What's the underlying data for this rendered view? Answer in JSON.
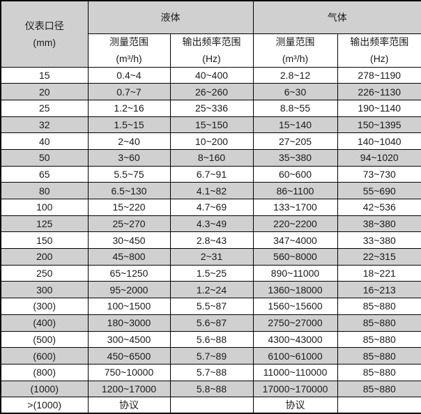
{
  "table": {
    "header": {
      "diameter_line1": "仪表口径",
      "diameter_line2": "(mm)",
      "group_liquid": "液体",
      "group_gas": "气体",
      "measure_label": "测量范围",
      "measure_unit": "(m³/h)",
      "freq_label": "输出频率范围",
      "freq_unit": "(Hz)"
    },
    "rows": [
      {
        "diameter": "15",
        "liquid_measure": "0.4~4",
        "liquid_freq": "40~400",
        "gas_measure": "2.8~12",
        "gas_freq": "278~1190",
        "shaded": false
      },
      {
        "diameter": "20",
        "liquid_measure": "0.7~7",
        "liquid_freq": "26~260",
        "gas_measure": "6~30",
        "gas_freq": "226~1130",
        "shaded": true
      },
      {
        "diameter": "25",
        "liquid_measure": "1.2~16",
        "liquid_freq": "25~336",
        "gas_measure": "8.8~55",
        "gas_freq": "190~1140",
        "shaded": false
      },
      {
        "diameter": "32",
        "liquid_measure": "1.5~15",
        "liquid_freq": "15~150",
        "gas_measure": "15~140",
        "gas_freq": "150~1395",
        "shaded": true
      },
      {
        "diameter": "40",
        "liquid_measure": "2~40",
        "liquid_freq": "10~200",
        "gas_measure": "27~205",
        "gas_freq": "140~1040",
        "shaded": false
      },
      {
        "diameter": "50",
        "liquid_measure": "3~60",
        "liquid_freq": "8~160",
        "gas_measure": "35~380",
        "gas_freq": "94~1020",
        "shaded": true
      },
      {
        "diameter": "65",
        "liquid_measure": "5.5~75",
        "liquid_freq": "6.7~91",
        "gas_measure": "60~600",
        "gas_freq": "73~730",
        "shaded": false
      },
      {
        "diameter": "80",
        "liquid_measure": "6.5~130",
        "liquid_freq": "4.1~82",
        "gas_measure": "86~1100",
        "gas_freq": "55~690",
        "shaded": true
      },
      {
        "diameter": "100",
        "liquid_measure": "15~220",
        "liquid_freq": "4.7~69",
        "gas_measure": "133~1700",
        "gas_freq": "42~536",
        "shaded": false
      },
      {
        "diameter": "125",
        "liquid_measure": "25~270",
        "liquid_freq": "4.3~49",
        "gas_measure": "220~2200",
        "gas_freq": "38~380",
        "shaded": true
      },
      {
        "diameter": "150",
        "liquid_measure": "30~450",
        "liquid_freq": "2.8~43",
        "gas_measure": "347~4000",
        "gas_freq": "33~380",
        "shaded": false
      },
      {
        "diameter": "200",
        "liquid_measure": "45~800",
        "liquid_freq": "2~31",
        "gas_measure": "560~8000",
        "gas_freq": "22~315",
        "shaded": true
      },
      {
        "diameter": "250",
        "liquid_measure": "65~1250",
        "liquid_freq": "1.5~25",
        "gas_measure": "890~11000",
        "gas_freq": "18~221",
        "shaded": false
      },
      {
        "diameter": "300",
        "liquid_measure": "95~2000",
        "liquid_freq": "1.2~24",
        "gas_measure": "1360~18000",
        "gas_freq": "16~213",
        "shaded": true
      },
      {
        "diameter": "(300)",
        "liquid_measure": "100~1500",
        "liquid_freq": "5.5~87",
        "gas_measure": "1560~15600",
        "gas_freq": "85~880",
        "shaded": false
      },
      {
        "diameter": "(400)",
        "liquid_measure": "180~3000",
        "liquid_freq": "5.6~87",
        "gas_measure": "2750~27000",
        "gas_freq": "85~880",
        "shaded": true
      },
      {
        "diameter": "(500)",
        "liquid_measure": "300~4500",
        "liquid_freq": "5.6~88",
        "gas_measure": "4300~43000",
        "gas_freq": "85~880",
        "shaded": false
      },
      {
        "diameter": "(600)",
        "liquid_measure": "450~6500",
        "liquid_freq": "5.7~89",
        "gas_measure": "6100~61000",
        "gas_freq": "85~880",
        "shaded": true
      },
      {
        "diameter": "(800)",
        "liquid_measure": "750~10000",
        "liquid_freq": "5.7~88",
        "gas_measure": "11000~110000",
        "gas_freq": "85~880",
        "shaded": false
      },
      {
        "diameter": "(1000)",
        "liquid_measure": "1200~17000",
        "liquid_freq": "5.8~88",
        "gas_measure": "17000~170000",
        "gas_freq": "85~880",
        "shaded": true
      },
      {
        "diameter": ">(1000)",
        "liquid_measure": "协议",
        "liquid_freq": "",
        "gas_measure": "协议",
        "gas_freq": "",
        "shaded": false
      }
    ]
  },
  "colors": {
    "header_bg": "#d0d0d0",
    "shaded_row": "#d0d0d0",
    "border": "#000000",
    "text": "#1a1a1a"
  }
}
